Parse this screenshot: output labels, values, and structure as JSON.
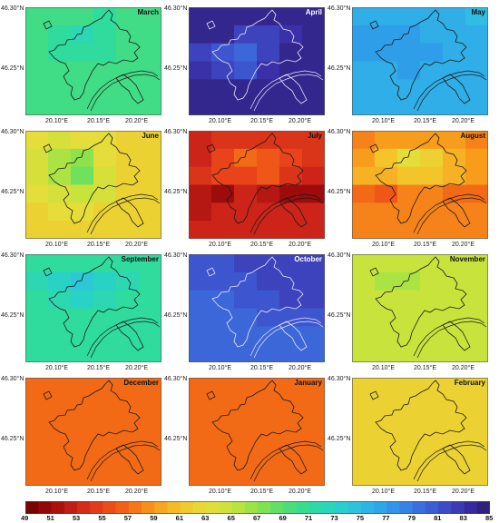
{
  "axis": {
    "lat_top": "46.30°N",
    "lat_mid": "46.25°N",
    "lon_labels": [
      "20.10°E",
      "20.15°E",
      "20.20°E"
    ]
  },
  "colorbar": {
    "ticks": [
      "49",
      "51",
      "53",
      "55",
      "57",
      "59",
      "61",
      "63",
      "65",
      "67",
      "69",
      "71",
      "73",
      "75",
      "77",
      "79",
      "81",
      "83",
      "85"
    ],
    "min": 49,
    "max": 85
  },
  "panels": [
    {
      "month": "March",
      "base": 70.5,
      "label_color": "#111111",
      "cells": [
        [
          70,
          70,
          70,
          71,
          70,
          70
        ],
        [
          70,
          71,
          72,
          71,
          70,
          70
        ],
        [
          70,
          71,
          71,
          71,
          70,
          70
        ],
        [
          70,
          70,
          70,
          70,
          70,
          70
        ],
        [
          70,
          70,
          70,
          70,
          70,
          70
        ],
        [
          70,
          70,
          70,
          70,
          70,
          70
        ]
      ]
    },
    {
      "month": "April",
      "base": 84,
      "label_color": "#ffffff",
      "cells": [
        [
          84,
          84,
          84,
          84,
          84,
          84
        ],
        [
          84,
          84,
          82,
          82,
          83,
          84
        ],
        [
          82,
          81,
          80,
          82,
          84,
          84
        ],
        [
          83,
          82,
          81,
          83,
          84,
          84
        ],
        [
          84,
          84,
          84,
          84,
          84,
          84
        ],
        [
          84,
          84,
          84,
          84,
          84,
          84
        ]
      ]
    },
    {
      "month": "May",
      "base": 76,
      "label_color": "#111111",
      "cells": [
        [
          76,
          76,
          76,
          76,
          76,
          75
        ],
        [
          77,
          77,
          77,
          76,
          76,
          76
        ],
        [
          77,
          77,
          77,
          77,
          76,
          76
        ],
        [
          76,
          76,
          77,
          76,
          76,
          76
        ],
        [
          76,
          76,
          76,
          76,
          76,
          76
        ],
        [
          76,
          76,
          76,
          76,
          76,
          76
        ]
      ]
    },
    {
      "month": "June",
      "base": 63,
      "label_color": "#111111",
      "cells": [
        [
          63,
          64,
          63,
          63,
          62,
          62
        ],
        [
          64,
          66,
          67,
          63,
          62,
          62
        ],
        [
          64,
          66,
          68,
          64,
          62,
          62
        ],
        [
          63,
          64,
          65,
          64,
          62,
          62
        ],
        [
          62,
          63,
          63,
          62,
          62,
          62
        ],
        [
          62,
          62,
          62,
          62,
          62,
          62
        ]
      ]
    },
    {
      "month": "July",
      "base": 53,
      "label_color": "#111111",
      "cells": [
        [
          53,
          54,
          54,
          54,
          54,
          54
        ],
        [
          53,
          55,
          57,
          56,
          55,
          54
        ],
        [
          54,
          55,
          55,
          56,
          54,
          53
        ],
        [
          52,
          51,
          53,
          52,
          51,
          51
        ],
        [
          52,
          53,
          53,
          53,
          53,
          53
        ],
        [
          53,
          53,
          53,
          53,
          53,
          53
        ]
      ]
    },
    {
      "month": "August",
      "base": 58,
      "label_color": "#111111",
      "cells": [
        [
          58,
          59,
          59,
          59,
          59,
          58
        ],
        [
          59,
          61,
          63,
          62,
          60,
          59
        ],
        [
          60,
          60,
          61,
          61,
          60,
          59
        ],
        [
          57,
          56,
          58,
          58,
          57,
          57
        ],
        [
          58,
          58,
          58,
          58,
          58,
          58
        ],
        [
          58,
          58,
          58,
          58,
          58,
          58
        ]
      ]
    },
    {
      "month": "September",
      "base": 71,
      "label_color": "#111111",
      "cells": [
        [
          71,
          71,
          71,
          71,
          71,
          71
        ],
        [
          72,
          73,
          74,
          73,
          72,
          71
        ],
        [
          71,
          72,
          73,
          72,
          71,
          71
        ],
        [
          71,
          71,
          71,
          71,
          71,
          71
        ],
        [
          71,
          71,
          71,
          71,
          71,
          71
        ],
        [
          71,
          71,
          71,
          71,
          71,
          71
        ]
      ]
    },
    {
      "month": "October",
      "base": 80,
      "label_color": "#ffffff",
      "cells": [
        [
          81,
          81,
          82,
          82,
          82,
          82
        ],
        [
          81,
          81,
          81,
          82,
          82,
          82
        ],
        [
          80,
          80,
          81,
          81,
          82,
          82
        ],
        [
          80,
          80,
          80,
          81,
          81,
          81
        ],
        [
          80,
          80,
          80,
          80,
          80,
          80
        ],
        [
          80,
          80,
          80,
          80,
          80,
          80
        ]
      ]
    },
    {
      "month": "November",
      "base": 65,
      "label_color": "#111111",
      "cells": [
        [
          65,
          65,
          65,
          65,
          65,
          65
        ],
        [
          65,
          66,
          66,
          65,
          65,
          65
        ],
        [
          65,
          65,
          65,
          65,
          65,
          65
        ],
        [
          65,
          65,
          65,
          65,
          65,
          65
        ],
        [
          65,
          65,
          65,
          65,
          65,
          65
        ],
        [
          65,
          65,
          65,
          65,
          65,
          65
        ]
      ]
    },
    {
      "month": "December",
      "base": 57,
      "label_color": "#111111",
      "cells": [
        [
          57,
          57,
          57,
          57,
          57,
          57
        ],
        [
          57,
          57,
          57,
          57,
          57,
          57
        ],
        [
          57,
          57,
          57,
          57,
          57,
          57
        ],
        [
          57,
          57,
          57,
          57,
          57,
          57
        ],
        [
          57,
          57,
          57,
          57,
          57,
          57
        ],
        [
          57,
          57,
          57,
          57,
          57,
          57
        ]
      ]
    },
    {
      "month": "January",
      "base": 57,
      "label_color": "#111111",
      "cells": [
        [
          57,
          57,
          57,
          57,
          57,
          57
        ],
        [
          57,
          57,
          57,
          57,
          57,
          57
        ],
        [
          57,
          57,
          57,
          57,
          57,
          57
        ],
        [
          57,
          57,
          57,
          57,
          57,
          57
        ],
        [
          57,
          57,
          57,
          57,
          57,
          57
        ],
        [
          57,
          57,
          57,
          57,
          57,
          57
        ]
      ]
    },
    {
      "month": "February",
      "base": 62,
      "label_color": "#111111",
      "cells": [
        [
          62,
          62,
          62,
          62,
          62,
          62
        ],
        [
          62,
          62,
          62,
          62,
          62,
          62
        ],
        [
          62,
          62,
          62,
          62,
          62,
          62
        ],
        [
          62,
          62,
          62,
          62,
          62,
          62
        ],
        [
          62,
          62,
          62,
          62,
          62,
          62
        ],
        [
          62,
          62,
          62,
          62,
          62,
          62
        ]
      ]
    }
  ]
}
